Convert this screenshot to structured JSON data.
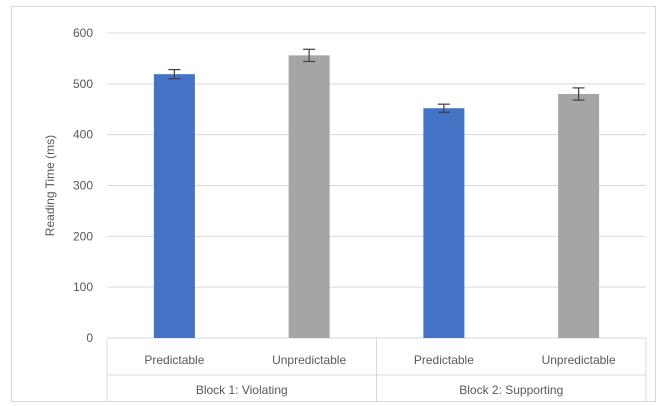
{
  "chart_data": {
    "type": "bar",
    "ylabel": "Reading Time (ms)",
    "ylim": [
      0,
      600
    ],
    "yticks": [
      "0",
      "100",
      "200",
      "300",
      "400",
      "500",
      "600"
    ],
    "grid": true,
    "groups": [
      {
        "label": "Block 1: Violating",
        "categories": [
          "Predictable",
          "Unpredictable"
        ]
      },
      {
        "label": "Block 2: Supporting",
        "categories": [
          "Predictable",
          "Unpredictable"
        ]
      }
    ],
    "bars": [
      {
        "group": "Block 1: Violating",
        "category": "Predictable",
        "value": 519,
        "error": 9,
        "color": "#4472c4"
      },
      {
        "group": "Block 1: Violating",
        "category": "Unpredictable",
        "value": 556,
        "error": 12,
        "color": "#a5a5a5"
      },
      {
        "group": "Block 2: Supporting",
        "category": "Predictable",
        "value": 452,
        "error": 8,
        "color": "#4472c4"
      },
      {
        "group": "Block 2: Supporting",
        "category": "Unpredictable",
        "value": 480,
        "error": 12,
        "color": "#a5a5a5"
      }
    ]
  }
}
